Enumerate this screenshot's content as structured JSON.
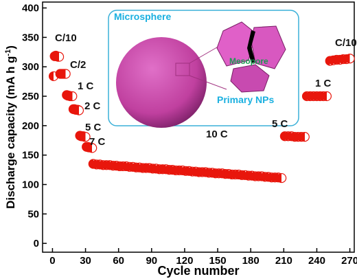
{
  "chart_data": {
    "type": "scatter",
    "x_label": "Cycle number",
    "y_label": "Discharge capacity (mA h g",
    "y_label_sup": "-1",
    "y_label_end": ")",
    "xlim": [
      -9,
      274
    ],
    "ylim": [
      -15,
      410
    ],
    "xticks": [
      0,
      30,
      60,
      90,
      120,
      150,
      180,
      210,
      240,
      270
    ],
    "yticks": [
      0,
      50,
      100,
      150,
      200,
      250,
      300,
      350,
      400
    ],
    "series": [
      {
        "color": "#e8160c",
        "x": [
          1,
          2,
          3,
          4,
          5,
          6,
          7,
          8,
          9,
          10,
          11,
          12,
          13,
          14,
          15,
          16,
          17,
          18,
          19,
          20,
          21,
          22,
          23,
          24,
          25,
          26,
          27,
          28,
          29,
          30,
          31,
          32,
          33,
          34,
          35,
          36,
          37,
          40,
          43,
          46,
          49,
          52,
          55,
          58,
          61,
          64,
          67,
          70,
          73,
          76,
          79,
          82,
          85,
          88,
          91,
          94,
          97,
          100,
          103,
          106,
          109,
          112,
          115,
          118,
          121,
          124,
          127,
          130,
          133,
          136,
          139,
          142,
          145,
          148,
          151,
          154,
          157,
          160,
          163,
          166,
          169,
          172,
          175,
          178,
          181,
          184,
          187,
          190,
          193,
          196,
          199,
          202,
          205,
          208,
          211,
          214,
          217,
          220,
          223,
          226,
          229,
          231,
          234,
          237,
          240,
          243,
          246,
          249,
          252,
          255,
          258,
          261,
          264,
          267,
          270
        ],
        "values": [
          284,
          318,
          319,
          318,
          317,
          317,
          288,
          288,
          288,
          288,
          288,
          288,
          252,
          251,
          251,
          250,
          250,
          250,
          228,
          228,
          227,
          227,
          227,
          226,
          183,
          182,
          182,
          182,
          181,
          181,
          164,
          164,
          163,
          163,
          163,
          162,
          135,
          134,
          134,
          133,
          133,
          133,
          132,
          132,
          131,
          131,
          131,
          130,
          130,
          129,
          129,
          128,
          128,
          128,
          127,
          127,
          126,
          126,
          126,
          125,
          125,
          124,
          124,
          124,
          123,
          123,
          122,
          122,
          121,
          121,
          121,
          120,
          120,
          119,
          119,
          119,
          118,
          118,
          117,
          117,
          117,
          116,
          116,
          115,
          115,
          114,
          114,
          114,
          113,
          113,
          112,
          112,
          112,
          111,
          182,
          182,
          182,
          181,
          181,
          181,
          181,
          250,
          250,
          250,
          250,
          250,
          250,
          250,
          310,
          311,
          312,
          312,
          313,
          313,
          314
        ]
      }
    ],
    "annotations": [
      "C/10",
      "C/2",
      "1 C",
      "2 C",
      "5 C",
      "7 C",
      "10 C",
      "5 C",
      "1 C",
      "C/10"
    ],
    "inset_labels": [
      "Microsphere",
      "Mesopore",
      "Primary NPs"
    ]
  }
}
